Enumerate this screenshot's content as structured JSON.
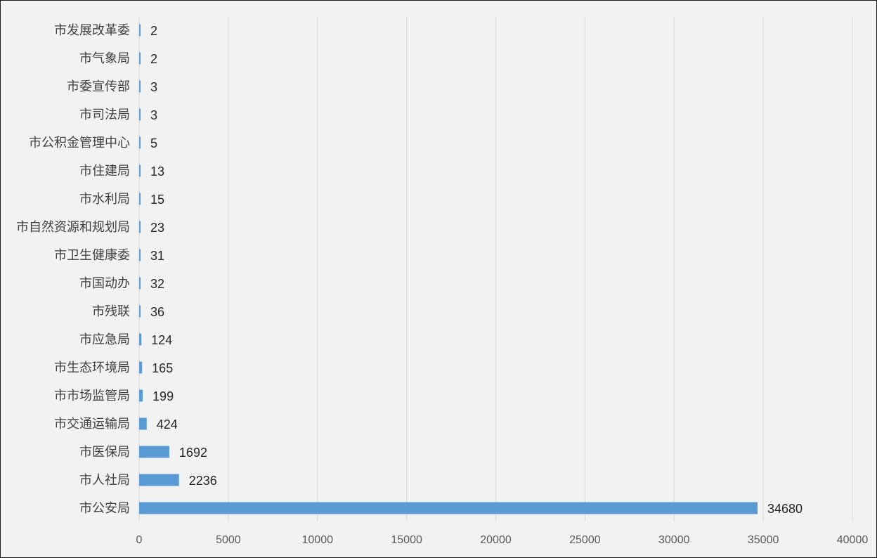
{
  "chart_data": {
    "type": "bar",
    "orientation": "horizontal",
    "categories": [
      "市发展改革委",
      "市气象局",
      "市委宣传部",
      "市司法局",
      "市公积金管理中心",
      "市住建局",
      "市水利局",
      "市自然资源和规划局",
      "市卫生健康委",
      "市国动办",
      "市残联",
      "市应急局",
      "市生态环境局",
      "市市场监管局",
      "市交通运输局",
      "市医保局",
      "市人社局",
      "市公安局"
    ],
    "values": [
      2,
      2,
      3,
      3,
      5,
      13,
      15,
      23,
      31,
      32,
      36,
      124,
      165,
      199,
      424,
      1692,
      2236,
      34680
    ],
    "xlim": [
      0,
      40000
    ],
    "xticks": [
      0,
      5000,
      10000,
      15000,
      20000,
      25000,
      30000,
      35000,
      40000
    ],
    "grid": "vertical",
    "legend": "none",
    "bar_color": "#5b9bd5",
    "grid_color": "#d9d9d9",
    "data_labels": true
  }
}
